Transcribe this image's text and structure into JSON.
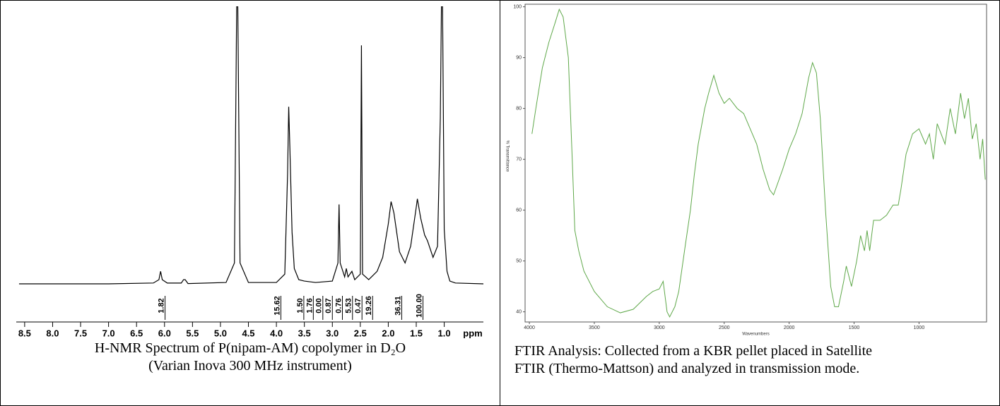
{
  "chart_data": [
    {
      "type": "nmr",
      "caption": [
        "H-NMR Spectrum of P(nipam-AM) copolymer in D₂O",
        "(Varian Inova 300 MHz instrument)"
      ],
      "xlabel": "ppm",
      "xlim": [
        8.65,
        0.3
      ],
      "ylim": [
        0,
        100
      ],
      "xticks": [
        8.5,
        {
          "value": 8,
          "label": "8.0"
        },
        7.5,
        {
          "value": 7,
          "label": "7.0"
        },
        6.5,
        {
          "value": 6,
          "label": "6.0"
        },
        5.5,
        {
          "value": 5,
          "label": "5.0"
        },
        4.5,
        {
          "value": 4,
          "label": "4.0"
        },
        3.5,
        {
          "value": 3,
          "label": "3.0"
        },
        2.5,
        {
          "value": 2,
          "label": "2.0"
        },
        1.5,
        {
          "value": 1,
          "label": "1.0"
        }
      ],
      "color": "#000000",
      "x": [
        8.6,
        7.0,
        6.2,
        6.1,
        6.07,
        6.04,
        5.95,
        5.7,
        5.66,
        5.63,
        5.58,
        4.9,
        4.75,
        4.71,
        4.69,
        4.65,
        4.5,
        4.0,
        3.85,
        3.8,
        3.78,
        3.76,
        3.72,
        3.68,
        3.6,
        3.5,
        3.3,
        3.0,
        2.9,
        2.88,
        2.86,
        2.78,
        2.75,
        2.72,
        2.65,
        2.6,
        2.5,
        2.48,
        2.46,
        2.35,
        2.2,
        2.1,
        2.0,
        1.95,
        1.9,
        1.8,
        1.7,
        1.6,
        1.5,
        1.48,
        1.42,
        1.35,
        1.3,
        1.2,
        1.12,
        1.07,
        1.05,
        1.03,
        1.0,
        0.95,
        0.9,
        0.8,
        0.3
      ],
      "values": [
        0.5,
        0.5,
        0.8,
        2,
        5,
        2,
        0.8,
        0.8,
        2,
        2,
        0.6,
        1,
        8,
        100,
        100,
        8,
        1,
        1,
        4,
        40,
        64,
        50,
        19,
        6,
        2,
        1.5,
        1,
        1.5,
        8,
        29,
        8,
        3,
        6,
        3,
        5,
        2,
        4,
        86,
        4,
        2,
        5,
        10,
        22,
        30,
        26,
        12,
        8,
        14,
        28,
        31,
        24,
        18,
        16,
        10,
        14,
        60,
        100,
        100,
        20,
        5,
        1.5,
        0.8,
        0.5
      ],
      "integrals": {
        "x": [
          5.99,
          3.92,
          3.51,
          3.34,
          3.17,
          3.0,
          2.82,
          2.64,
          2.47,
          2.28,
          1.76,
          1.38
        ],
        "values": [
          1.82,
          15.62,
          1.5,
          1.76,
          0,
          0.87,
          0.76,
          5.53,
          0.47,
          19.26,
          36.31,
          100
        ],
        "value_labels": [
          "1.82",
          "15.62",
          "1.50",
          "1.76",
          "0.00",
          "0.87",
          "0.76",
          "5.53",
          "0.47",
          "19.26",
          "36.31",
          "100.00"
        ]
      }
    },
    {
      "type": "line",
      "caption": "FTIR Analysis: Collected from a KBR pellet placed in Satellite FTIR (Thermo-Mattson) and analyzed in transmission mode.",
      "xlabel": "Wavenumbers",
      "ylabel": "% Transmittance",
      "xlim": [
        4033,
        480
      ],
      "ylim": [
        38,
        100.5
      ],
      "xticks": [
        4000,
        3500,
        3000,
        2500,
        2000,
        1500,
        1000
      ],
      "yticks": [
        40,
        50,
        60,
        70,
        80,
        90,
        100
      ],
      "color": "#5fa84a",
      "x": [
        3980,
        3950,
        3900,
        3850,
        3800,
        3770,
        3740,
        3700,
        3670,
        3650,
        3620,
        3580,
        3500,
        3400,
        3300,
        3200,
        3100,
        3050,
        3000,
        2970,
        2940,
        2920,
        2880,
        2850,
        2800,
        2760,
        2730,
        2700,
        2650,
        2620,
        2580,
        2540,
        2500,
        2460,
        2400,
        2350,
        2300,
        2250,
        2200,
        2150,
        2120,
        2050,
        2000,
        1950,
        1900,
        1850,
        1820,
        1790,
        1760,
        1720,
        1680,
        1650,
        1620,
        1580,
        1560,
        1520,
        1480,
        1450,
        1420,
        1400,
        1380,
        1350,
        1300,
        1250,
        1200,
        1160,
        1140,
        1100,
        1050,
        1000,
        950,
        920,
        890,
        860,
        830,
        800,
        760,
        720,
        680,
        650,
        620,
        590,
        560,
        530,
        510,
        490
      ],
      "values": [
        75,
        80,
        88,
        93,
        97,
        99.5,
        98,
        90,
        70,
        56,
        52,
        48,
        44,
        41,
        39.8,
        40.5,
        43,
        44,
        44.5,
        46,
        40,
        39,
        41,
        44,
        53,
        60,
        67,
        73,
        80,
        83,
        86.5,
        83,
        81,
        82,
        80,
        79,
        76,
        73,
        68,
        64,
        63,
        68,
        72,
        75,
        79,
        86,
        89,
        87,
        78,
        60,
        45,
        41,
        41,
        46,
        49,
        45,
        50,
        55,
        52,
        56,
        52,
        58,
        58,
        59,
        61,
        61,
        64,
        71,
        75,
        76,
        73,
        75,
        70,
        77,
        75,
        73,
        80,
        75,
        83,
        78,
        82,
        74,
        77,
        70,
        74,
        66
      ]
    }
  ]
}
